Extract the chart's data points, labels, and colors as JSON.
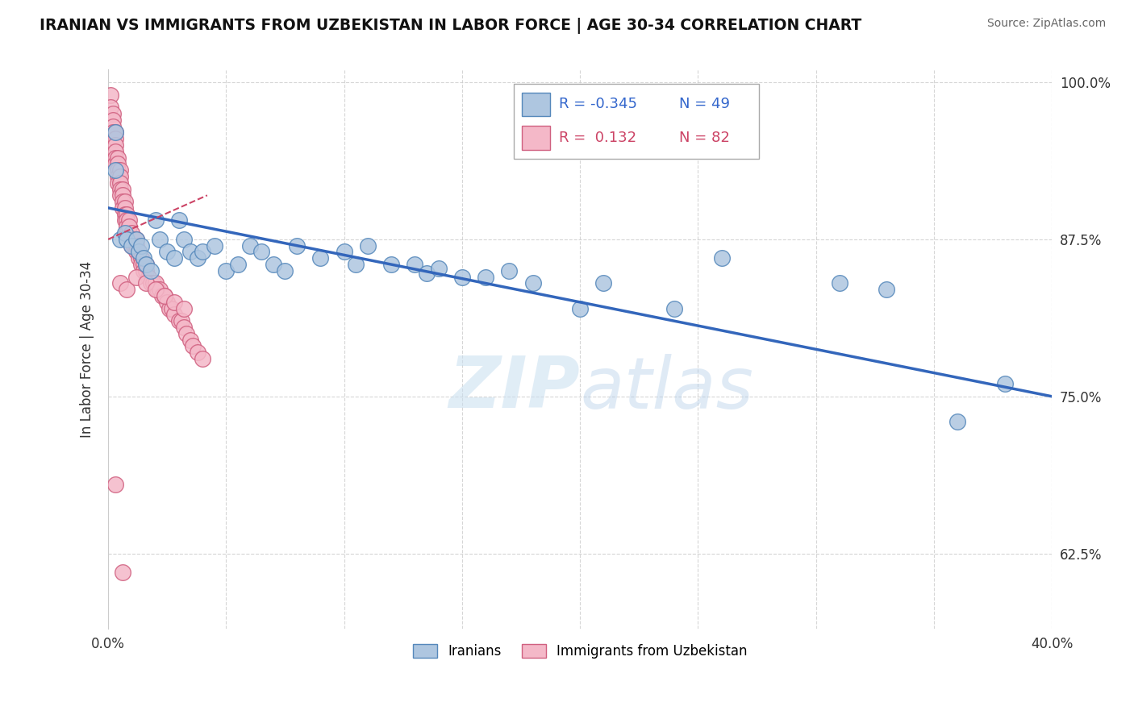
{
  "title": "IRANIAN VS IMMIGRANTS FROM UZBEKISTAN IN LABOR FORCE | AGE 30-34 CORRELATION CHART",
  "source": "Source: ZipAtlas.com",
  "ylabel_label": "In Labor Force | Age 30-34",
  "xlim": [
    0.0,
    0.4
  ],
  "ylim": [
    0.565,
    1.01
  ],
  "xticks": [
    0.0,
    0.05,
    0.1,
    0.15,
    0.2,
    0.25,
    0.3,
    0.35,
    0.4
  ],
  "yticks": [
    0.625,
    0.75,
    0.875,
    1.0
  ],
  "yticklabels": [
    "62.5%",
    "75.0%",
    "87.5%",
    "100.0%"
  ],
  "blue_color": "#aec6e0",
  "blue_edge": "#5588bb",
  "pink_color": "#f4b8c8",
  "pink_edge": "#d06080",
  "blue_line_color": "#3366bb",
  "pink_line_color": "#cc4466",
  "watermark_zip": "ZIP",
  "watermark_atlas": "atlas",
  "legend_r_blue": "-0.345",
  "legend_n_blue": "49",
  "legend_r_pink": "0.132",
  "legend_n_pink": "82",
  "iranians_label": "Iranians",
  "uzbekistan_label": "Immigrants from Uzbekistan",
  "blue_scatter_x": [
    0.003,
    0.003,
    0.005,
    0.007,
    0.008,
    0.01,
    0.012,
    0.013,
    0.014,
    0.015,
    0.016,
    0.018,
    0.02,
    0.022,
    0.025,
    0.028,
    0.03,
    0.032,
    0.035,
    0.038,
    0.04,
    0.045,
    0.05,
    0.055,
    0.06,
    0.065,
    0.07,
    0.075,
    0.08,
    0.09,
    0.1,
    0.105,
    0.11,
    0.12,
    0.13,
    0.135,
    0.14,
    0.15,
    0.16,
    0.17,
    0.18,
    0.2,
    0.21,
    0.24,
    0.26,
    0.31,
    0.33,
    0.36,
    0.38
  ],
  "blue_scatter_y": [
    0.93,
    0.96,
    0.875,
    0.88,
    0.875,
    0.87,
    0.875,
    0.865,
    0.87,
    0.86,
    0.855,
    0.85,
    0.89,
    0.875,
    0.865,
    0.86,
    0.89,
    0.875,
    0.865,
    0.86,
    0.865,
    0.87,
    0.85,
    0.855,
    0.87,
    0.865,
    0.855,
    0.85,
    0.87,
    0.86,
    0.865,
    0.855,
    0.87,
    0.855,
    0.855,
    0.848,
    0.852,
    0.845,
    0.845,
    0.85,
    0.84,
    0.82,
    0.84,
    0.82,
    0.86,
    0.84,
    0.835,
    0.73,
    0.76
  ],
  "pink_scatter_x": [
    0.001,
    0.001,
    0.002,
    0.002,
    0.002,
    0.002,
    0.003,
    0.003,
    0.003,
    0.003,
    0.003,
    0.003,
    0.004,
    0.004,
    0.004,
    0.004,
    0.004,
    0.005,
    0.005,
    0.005,
    0.005,
    0.005,
    0.006,
    0.006,
    0.006,
    0.006,
    0.007,
    0.007,
    0.007,
    0.007,
    0.008,
    0.008,
    0.008,
    0.008,
    0.009,
    0.009,
    0.01,
    0.01,
    0.01,
    0.011,
    0.011,
    0.012,
    0.012,
    0.012,
    0.013,
    0.013,
    0.014,
    0.014,
    0.015,
    0.015,
    0.016,
    0.016,
    0.017,
    0.018,
    0.019,
    0.02,
    0.021,
    0.022,
    0.023,
    0.024,
    0.025,
    0.026,
    0.027,
    0.028,
    0.03,
    0.031,
    0.032,
    0.033,
    0.035,
    0.036,
    0.038,
    0.04,
    0.005,
    0.008,
    0.012,
    0.016,
    0.02,
    0.024,
    0.028,
    0.032,
    0.003,
    0.006
  ],
  "pink_scatter_y": [
    0.99,
    0.98,
    0.975,
    0.97,
    0.965,
    0.96,
    0.96,
    0.955,
    0.95,
    0.945,
    0.94,
    0.935,
    0.94,
    0.935,
    0.93,
    0.925,
    0.92,
    0.93,
    0.925,
    0.92,
    0.915,
    0.91,
    0.915,
    0.91,
    0.905,
    0.9,
    0.905,
    0.9,
    0.895,
    0.89,
    0.895,
    0.89,
    0.885,
    0.88,
    0.89,
    0.885,
    0.88,
    0.875,
    0.87,
    0.875,
    0.87,
    0.875,
    0.87,
    0.865,
    0.86,
    0.865,
    0.86,
    0.855,
    0.855,
    0.85,
    0.855,
    0.85,
    0.845,
    0.84,
    0.84,
    0.84,
    0.835,
    0.835,
    0.83,
    0.83,
    0.825,
    0.82,
    0.82,
    0.815,
    0.81,
    0.81,
    0.805,
    0.8,
    0.795,
    0.79,
    0.785,
    0.78,
    0.84,
    0.835,
    0.845,
    0.84,
    0.835,
    0.83,
    0.825,
    0.82,
    0.68,
    0.61
  ],
  "blue_trend_x": [
    0.0,
    0.4
  ],
  "blue_trend_y": [
    0.9,
    0.75
  ],
  "pink_trend_x": [
    0.0,
    0.042
  ],
  "pink_trend_y": [
    0.875,
    0.91
  ]
}
